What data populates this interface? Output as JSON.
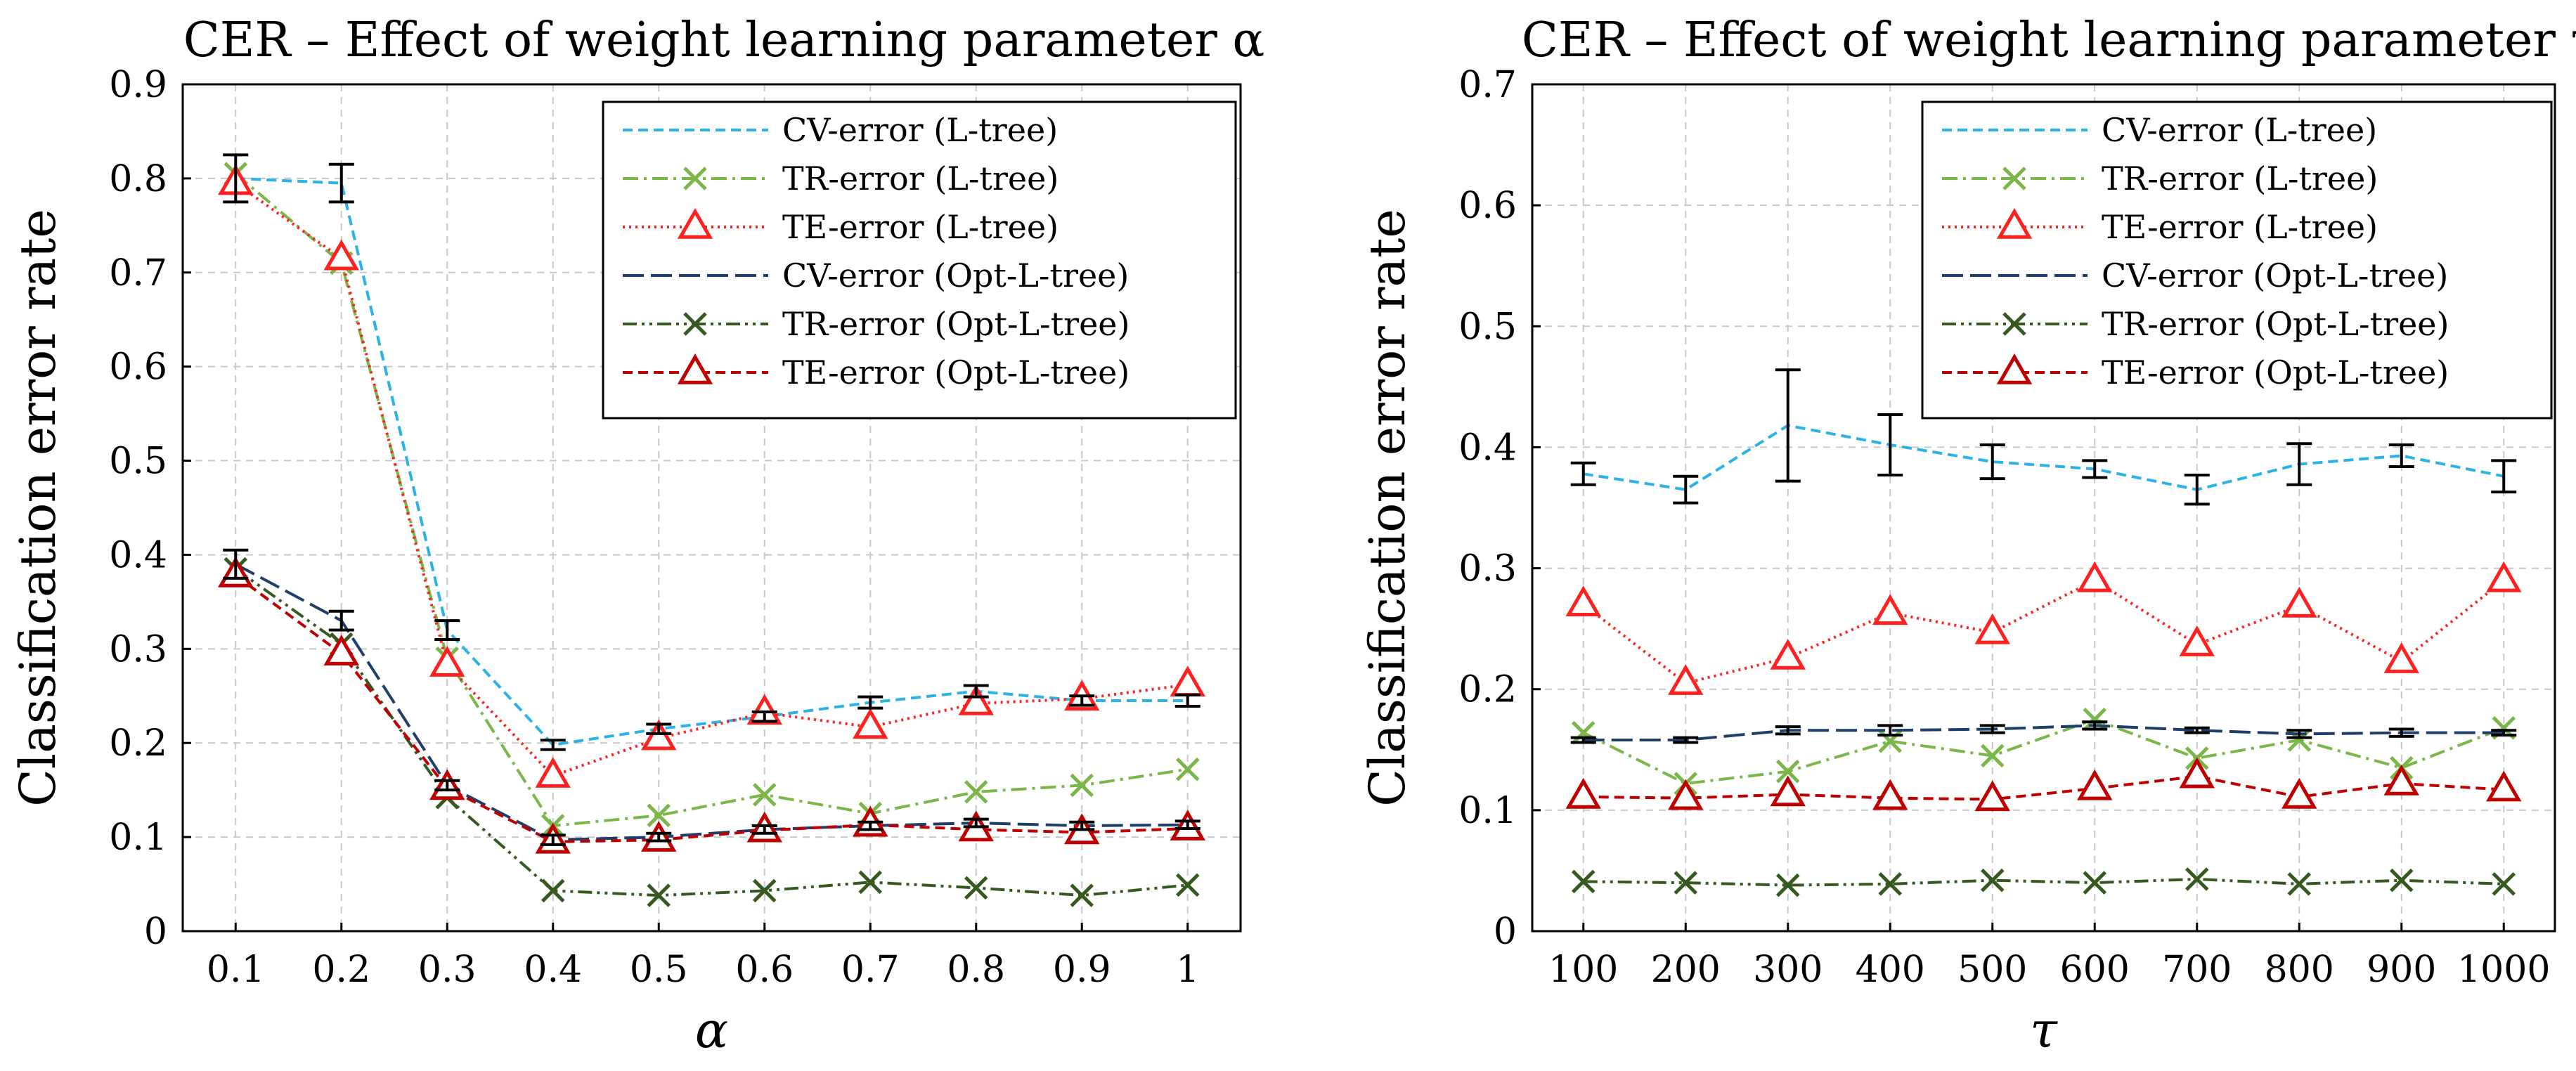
{
  "chart_data": [
    {
      "type": "line",
      "title": "CER – Effect of weight learning parameter α",
      "xlabel": "α",
      "ylabel": "Classification error rate",
      "categories": [
        "0.1",
        "0.2",
        "0.3",
        "0.4",
        "0.5",
        "0.6",
        "0.7",
        "0.8",
        "0.9",
        "1"
      ],
      "ylim": [
        0,
        0.9
      ],
      "yticks": [
        "0",
        "0.1",
        "0.2",
        "0.3",
        "0.4",
        "0.5",
        "0.6",
        "0.7",
        "0.8",
        "0.9"
      ],
      "grid": true,
      "legend_position": "top-right",
      "series": [
        {
          "name": "CV-error (L-tree)",
          "style": "dashed",
          "marker": "none",
          "color": "#2bb3e8",
          "values": [
            0.8,
            0.795,
            0.32,
            0.198,
            0.215,
            0.228,
            0.243,
            0.255,
            0.245,
            0.245
          ],
          "errors": [
            0.025,
            0.02,
            0.01,
            0.005,
            0.005,
            0.005,
            0.006,
            0.006,
            0.005,
            0.006
          ]
        },
        {
          "name": "TR-error (L-tree)",
          "style": "dashdot",
          "marker": "x",
          "color": "#7ab648",
          "values": [
            0.805,
            0.71,
            0.29,
            0.112,
            0.123,
            0.145,
            0.125,
            0.148,
            0.155,
            0.172
          ]
        },
        {
          "name": "TE-error (L-tree)",
          "style": "dotted",
          "marker": "triangle",
          "color": "#ff2020",
          "values": [
            0.795,
            0.715,
            0.283,
            0.165,
            0.205,
            0.232,
            0.217,
            0.242,
            0.247,
            0.262
          ]
        },
        {
          "name": "CV-error (Opt-L-tree)",
          "style": "longdash",
          "marker": "none",
          "color": "#1f3f6b",
          "values": [
            0.39,
            0.33,
            0.155,
            0.097,
            0.1,
            0.108,
            0.112,
            0.115,
            0.112,
            0.113
          ],
          "errors": [
            0.015,
            0.01,
            0.005,
            0.005,
            0.004,
            0.004,
            0.004,
            0.004,
            0.004,
            0.004
          ]
        },
        {
          "name": "TR-error (Opt-L-tree)",
          "style": "dashdotdot",
          "marker": "x",
          "color": "#35591f",
          "values": [
            0.385,
            0.305,
            0.142,
            0.043,
            0.038,
            0.043,
            0.052,
            0.046,
            0.038,
            0.049
          ]
        },
        {
          "name": "TE-error (Opt-L-tree)",
          "style": "dashed",
          "marker": "triangle",
          "color": "#c00000",
          "values": [
            0.378,
            0.295,
            0.152,
            0.095,
            0.097,
            0.107,
            0.113,
            0.108,
            0.105,
            0.109
          ]
        }
      ]
    },
    {
      "type": "line",
      "title": "CER – Effect of weight learning parameter τ",
      "xlabel": "τ",
      "ylabel": "Classification error rate",
      "categories": [
        "100",
        "200",
        "300",
        "400",
        "500",
        "600",
        "700",
        "800",
        "900",
        "1000"
      ],
      "ylim": [
        0,
        0.7
      ],
      "yticks": [
        "0",
        "0.1",
        "0.2",
        "0.3",
        "0.4",
        "0.5",
        "0.6",
        "0.7"
      ],
      "grid": true,
      "legend_position": "top-right",
      "series": [
        {
          "name": "CV-error (L-tree)",
          "style": "dashed",
          "marker": "none",
          "color": "#2bb3e8",
          "values": [
            0.378,
            0.365,
            0.418,
            0.402,
            0.388,
            0.382,
            0.365,
            0.386,
            0.393,
            0.376
          ],
          "errors": [
            0.009,
            0.011,
            0.046,
            0.025,
            0.014,
            0.007,
            0.012,
            0.017,
            0.009,
            0.013
          ]
        },
        {
          "name": "TR-error (L-tree)",
          "style": "dashdot",
          "marker": "x",
          "color": "#7ab648",
          "values": [
            0.164,
            0.122,
            0.132,
            0.157,
            0.145,
            0.175,
            0.143,
            0.158,
            0.135,
            0.168
          ]
        },
        {
          "name": "TE-error (L-tree)",
          "style": "dotted",
          "marker": "triangle",
          "color": "#ff2020",
          "values": [
            0.27,
            0.205,
            0.226,
            0.263,
            0.247,
            0.29,
            0.237,
            0.269,
            0.223,
            0.29
          ]
        },
        {
          "name": "CV-error (Opt-L-tree)",
          "style": "longdash",
          "marker": "none",
          "color": "#1f3f6b",
          "values": [
            0.158,
            0.158,
            0.166,
            0.166,
            0.167,
            0.17,
            0.166,
            0.163,
            0.164,
            0.164
          ],
          "errors": [
            0.002,
            0.002,
            0.003,
            0.004,
            0.003,
            0.003,
            0.002,
            0.003,
            0.003,
            0.002
          ]
        },
        {
          "name": "TR-error (Opt-L-tree)",
          "style": "dashdotdot",
          "marker": "x",
          "color": "#35591f",
          "values": [
            0.041,
            0.04,
            0.038,
            0.039,
            0.042,
            0.04,
            0.043,
            0.039,
            0.042,
            0.039
          ]
        },
        {
          "name": "TE-error (Opt-L-tree)",
          "style": "dashed",
          "marker": "triangle",
          "color": "#c00000",
          "values": [
            0.111,
            0.11,
            0.113,
            0.11,
            0.109,
            0.118,
            0.128,
            0.111,
            0.122,
            0.117
          ]
        }
      ]
    }
  ]
}
